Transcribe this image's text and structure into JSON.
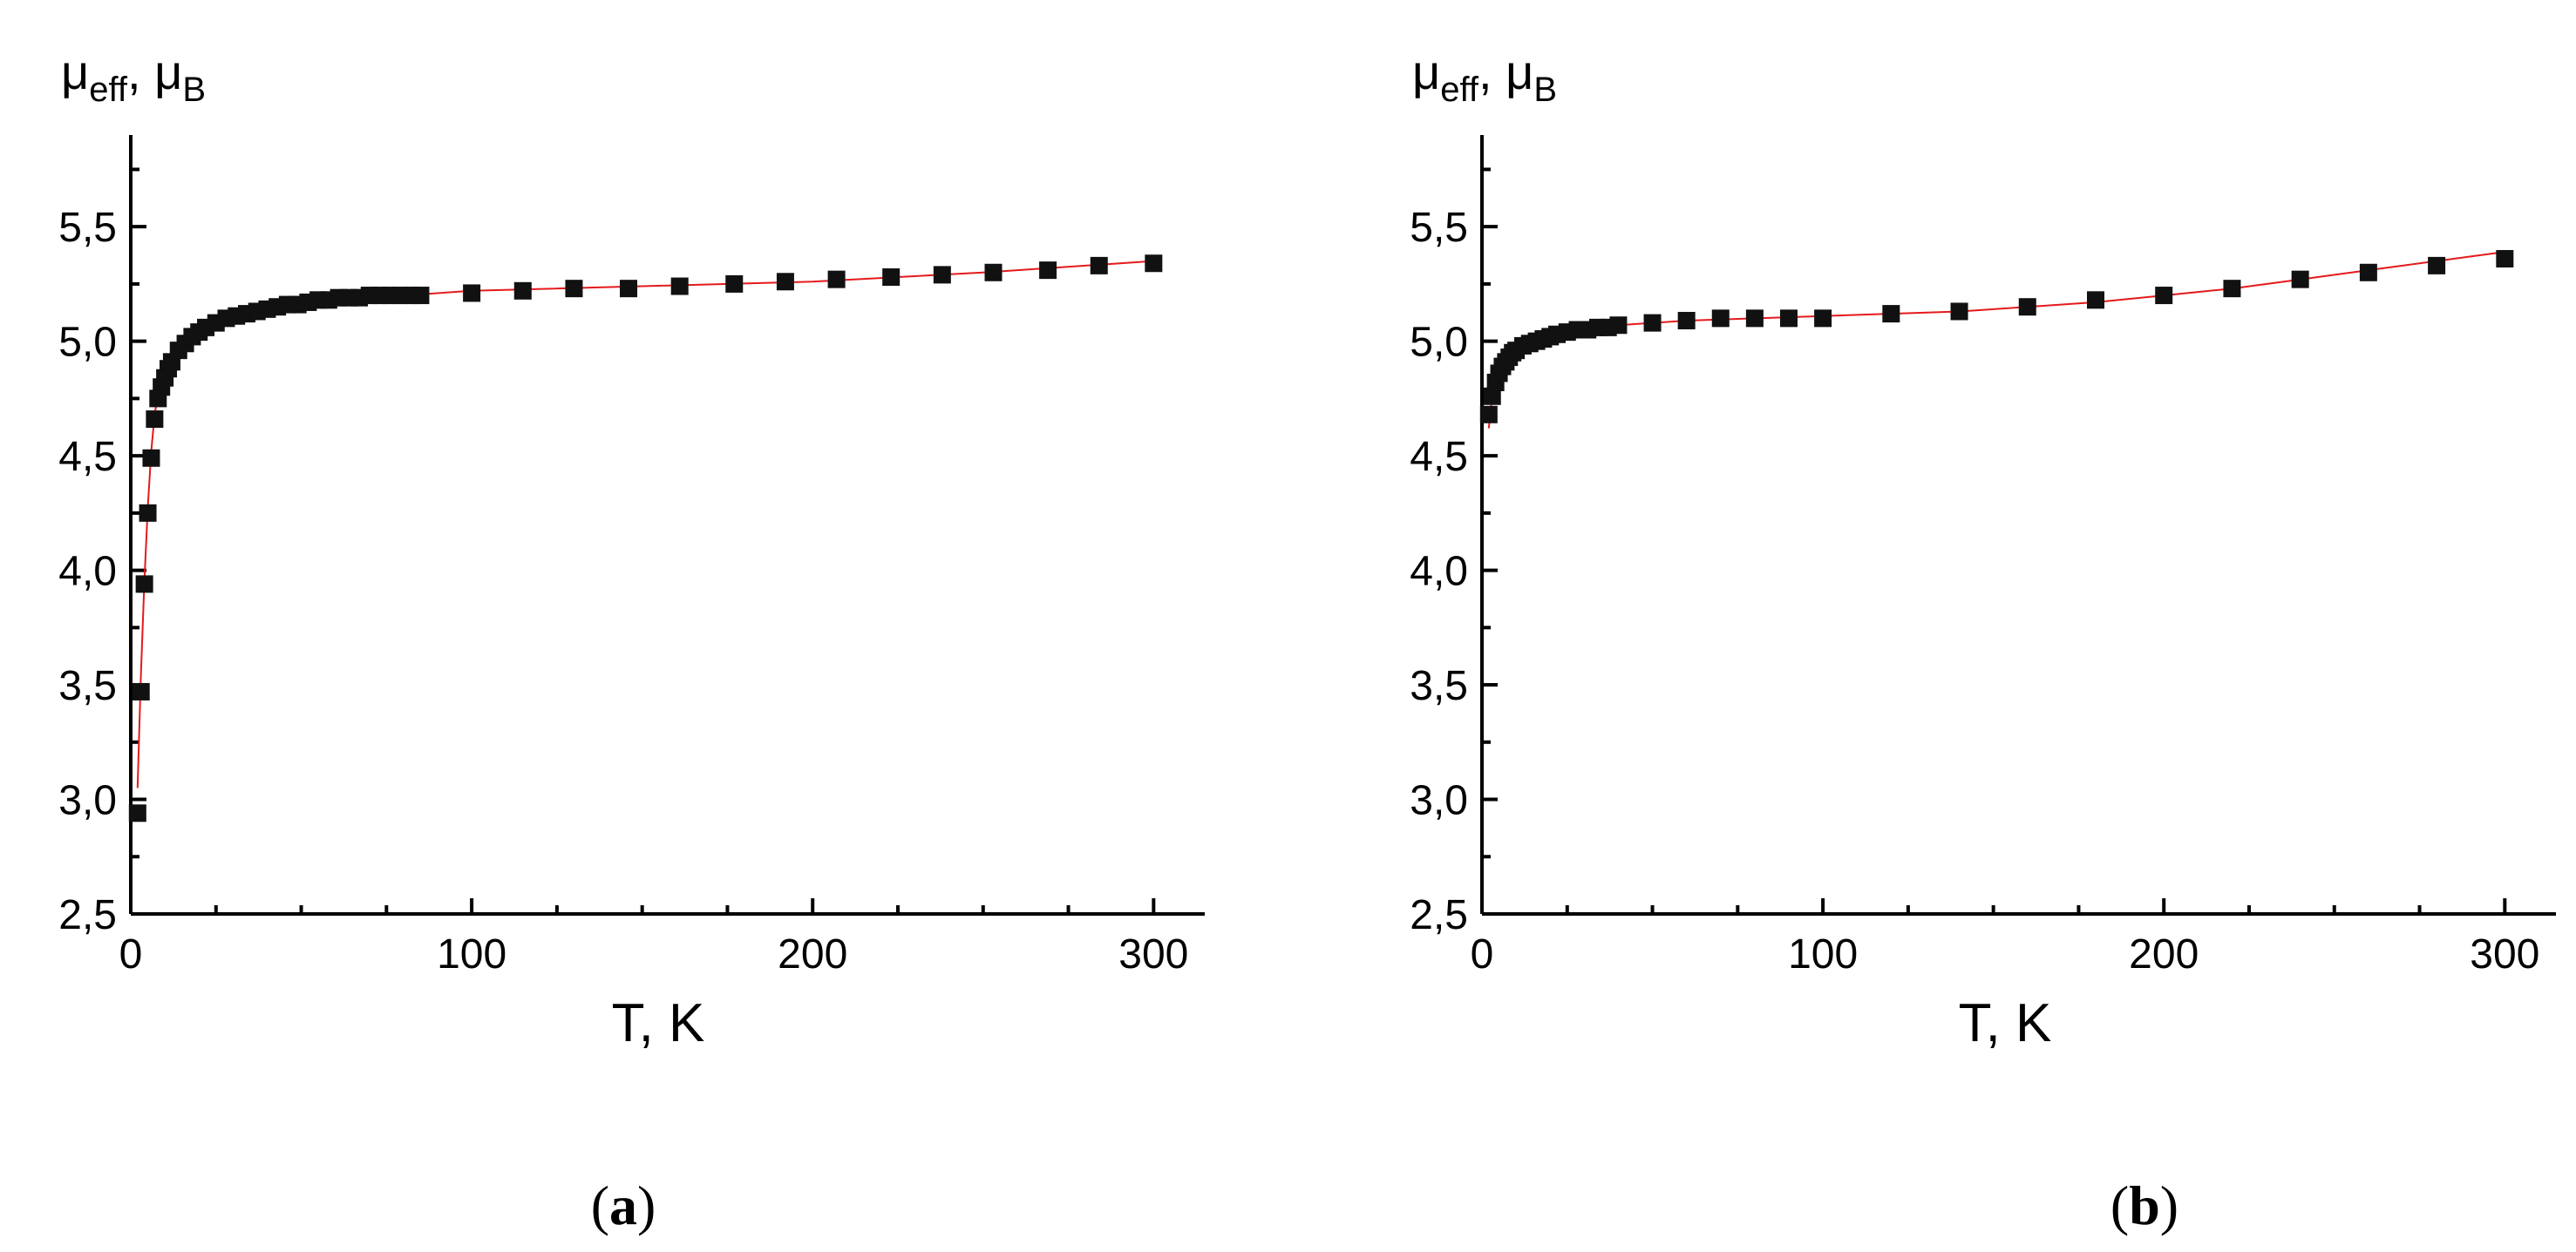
{
  "chart_data": [
    {
      "type": "scatter",
      "panel_label": "a",
      "xlabel": "T, K",
      "ylabel": {
        "mu": "μ",
        "sub1": "eff",
        "sep": ", ",
        "mu2": "μ",
        "sub2": "B"
      },
      "xlim": [
        0,
        315
      ],
      "ylim": [
        2.5,
        5.9
      ],
      "xticks": [
        "0",
        "100",
        "200",
        "300"
      ],
      "xtick_values": [
        0,
        100,
        200,
        300
      ],
      "yticks": [
        "2,5",
        "3,0",
        "3,5",
        "4,0",
        "4,5",
        "5,0",
        "5,5"
      ],
      "ytick_values": [
        2.5,
        3.0,
        3.5,
        4.0,
        4.5,
        5.0,
        5.5
      ],
      "grid": false,
      "colors": {
        "markers": "#111111",
        "fit": "#e41a1c"
      },
      "series": [
        {
          "kind": "markers",
          "x": [
            2,
            3,
            4,
            5,
            6,
            7,
            8,
            9,
            10,
            11,
            12,
            14,
            16,
            18,
            20,
            22,
            25,
            28,
            31,
            34,
            37,
            40,
            43,
            46,
            49,
            52,
            55,
            58,
            61,
            64,
            67,
            70,
            73,
            76,
            79,
            82,
            85,
            100,
            115,
            130,
            146,
            161,
            177,
            192,
            207,
            223,
            238,
            253,
            269,
            284,
            300
          ],
          "y": [
            2.94,
            3.47,
            3.94,
            4.25,
            4.49,
            4.66,
            4.75,
            4.8,
            4.84,
            4.88,
            4.91,
            4.96,
            4.99,
            5.02,
            5.04,
            5.06,
            5.08,
            5.1,
            5.11,
            5.12,
            5.13,
            5.14,
            5.15,
            5.16,
            5.16,
            5.17,
            5.18,
            5.18,
            5.19,
            5.19,
            5.19,
            5.2,
            5.2,
            5.2,
            5.2,
            5.2,
            5.2,
            5.21,
            5.22,
            5.23,
            5.23,
            5.24,
            5.25,
            5.26,
            5.27,
            5.28,
            5.29,
            5.3,
            5.31,
            5.33,
            5.34
          ]
        },
        {
          "kind": "fit",
          "x": [
            2,
            3,
            4,
            5,
            6,
            7,
            8,
            10,
            12,
            15,
            20,
            25,
            30,
            40,
            50,
            60,
            80,
            100,
            150,
            200,
            250,
            300
          ],
          "y": [
            3.05,
            3.55,
            3.95,
            4.28,
            4.52,
            4.68,
            4.77,
            4.86,
            4.92,
            4.98,
            5.04,
            5.08,
            5.11,
            5.14,
            5.16,
            5.18,
            5.2,
            5.22,
            5.24,
            5.26,
            5.3,
            5.35
          ]
        }
      ]
    },
    {
      "type": "scatter",
      "panel_label": "b",
      "xlabel": "T, K",
      "ylabel": {
        "mu": "μ",
        "sub1": "eff",
        "sep": ", ",
        "mu2": "μ",
        "sub2": "B"
      },
      "xlim": [
        0,
        315
      ],
      "ylim": [
        2.5,
        5.9
      ],
      "xticks": [
        "0",
        "100",
        "200",
        "300"
      ],
      "xtick_values": [
        0,
        100,
        200,
        300
      ],
      "yticks": [
        "2,5",
        "3,0",
        "3,5",
        "4,0",
        "4,5",
        "5,0",
        "5,5"
      ],
      "ytick_values": [
        2.5,
        3.0,
        3.5,
        4.0,
        4.5,
        5.0,
        5.5
      ],
      "grid": false,
      "colors": {
        "markers": "#111111",
        "fit": "#e41a1c"
      },
      "series": [
        {
          "kind": "markers",
          "x": [
            2,
            3,
            4,
            5,
            6,
            7,
            8,
            9,
            10,
            12,
            14,
            16,
            18,
            20,
            22,
            25,
            28,
            31,
            34,
            37,
            40,
            50,
            60,
            70,
            80,
            90,
            100,
            120,
            140,
            160,
            180,
            200,
            220,
            240,
            260,
            280,
            300
          ],
          "y": [
            4.68,
            4.76,
            4.82,
            4.86,
            4.89,
            4.91,
            4.93,
            4.95,
            4.96,
            4.98,
            4.99,
            5.0,
            5.01,
            5.02,
            5.03,
            5.04,
            5.05,
            5.05,
            5.06,
            5.06,
            5.07,
            5.08,
            5.09,
            5.1,
            5.1,
            5.1,
            5.1,
            5.12,
            5.13,
            5.15,
            5.18,
            5.2,
            5.23,
            5.27,
            5.3,
            5.33,
            5.36
          ]
        },
        {
          "kind": "fit",
          "x": [
            2,
            3,
            4,
            6,
            8,
            10,
            15,
            20,
            30,
            40,
            60,
            80,
            100,
            120,
            140,
            160,
            180,
            200,
            220,
            240,
            260,
            280,
            300
          ],
          "y": [
            4.62,
            4.76,
            4.84,
            4.9,
            4.94,
            4.96,
            5.0,
            5.02,
            5.05,
            5.07,
            5.09,
            5.1,
            5.11,
            5.12,
            5.13,
            5.15,
            5.17,
            5.2,
            5.23,
            5.27,
            5.31,
            5.35,
            5.39
          ]
        }
      ]
    }
  ]
}
